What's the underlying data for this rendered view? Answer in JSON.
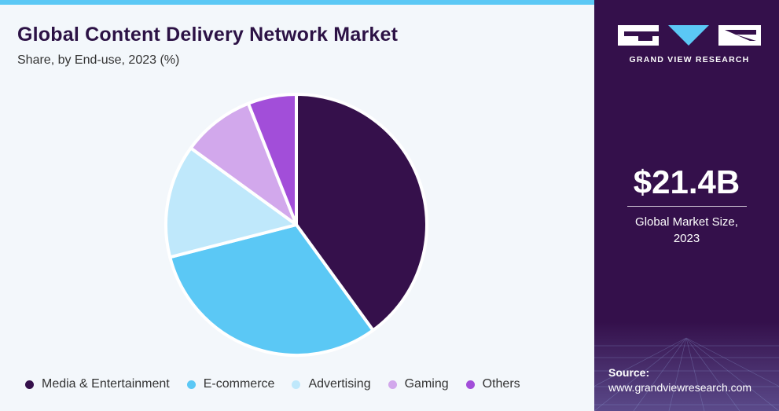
{
  "header": {
    "title": "Global Content Delivery Network Market",
    "subtitle": "Share, by End-use, 2023 (%)"
  },
  "chart_data": {
    "type": "pie",
    "title": "Global Content Delivery Network Market",
    "subtitle": "Share, by End-use, 2023 (%)",
    "categories": [
      "Media & Entertainment",
      "E-commerce",
      "Advertising",
      "Gaming",
      "Others"
    ],
    "values": [
      40,
      31,
      14,
      9,
      6
    ],
    "colors": [
      "#35104b",
      "#5bc8f5",
      "#bfe8fb",
      "#d2a8ec",
      "#a24ed9"
    ],
    "legend_position": "bottom"
  },
  "legend": {
    "items": [
      {
        "label": "Media & Entertainment",
        "color": "#35104b"
      },
      {
        "label": "E-commerce",
        "color": "#5bc8f5"
      },
      {
        "label": "Advertising",
        "color": "#bfe8fb"
      },
      {
        "label": "Gaming",
        "color": "#d2a8ec"
      },
      {
        "label": "Others",
        "color": "#a24ed9"
      }
    ]
  },
  "sidebar": {
    "brand": "GRAND VIEW RESEARCH",
    "market_size_value": "$21.4B",
    "market_size_caption_line1": "Global Market Size,",
    "market_size_caption_line2": "2023",
    "source_label": "Source:",
    "source_url": "www.grandviewresearch.com"
  },
  "colors": {
    "sidebar_bg": "#34104b",
    "accent": "#5bc8f5",
    "title": "#2c1245"
  }
}
